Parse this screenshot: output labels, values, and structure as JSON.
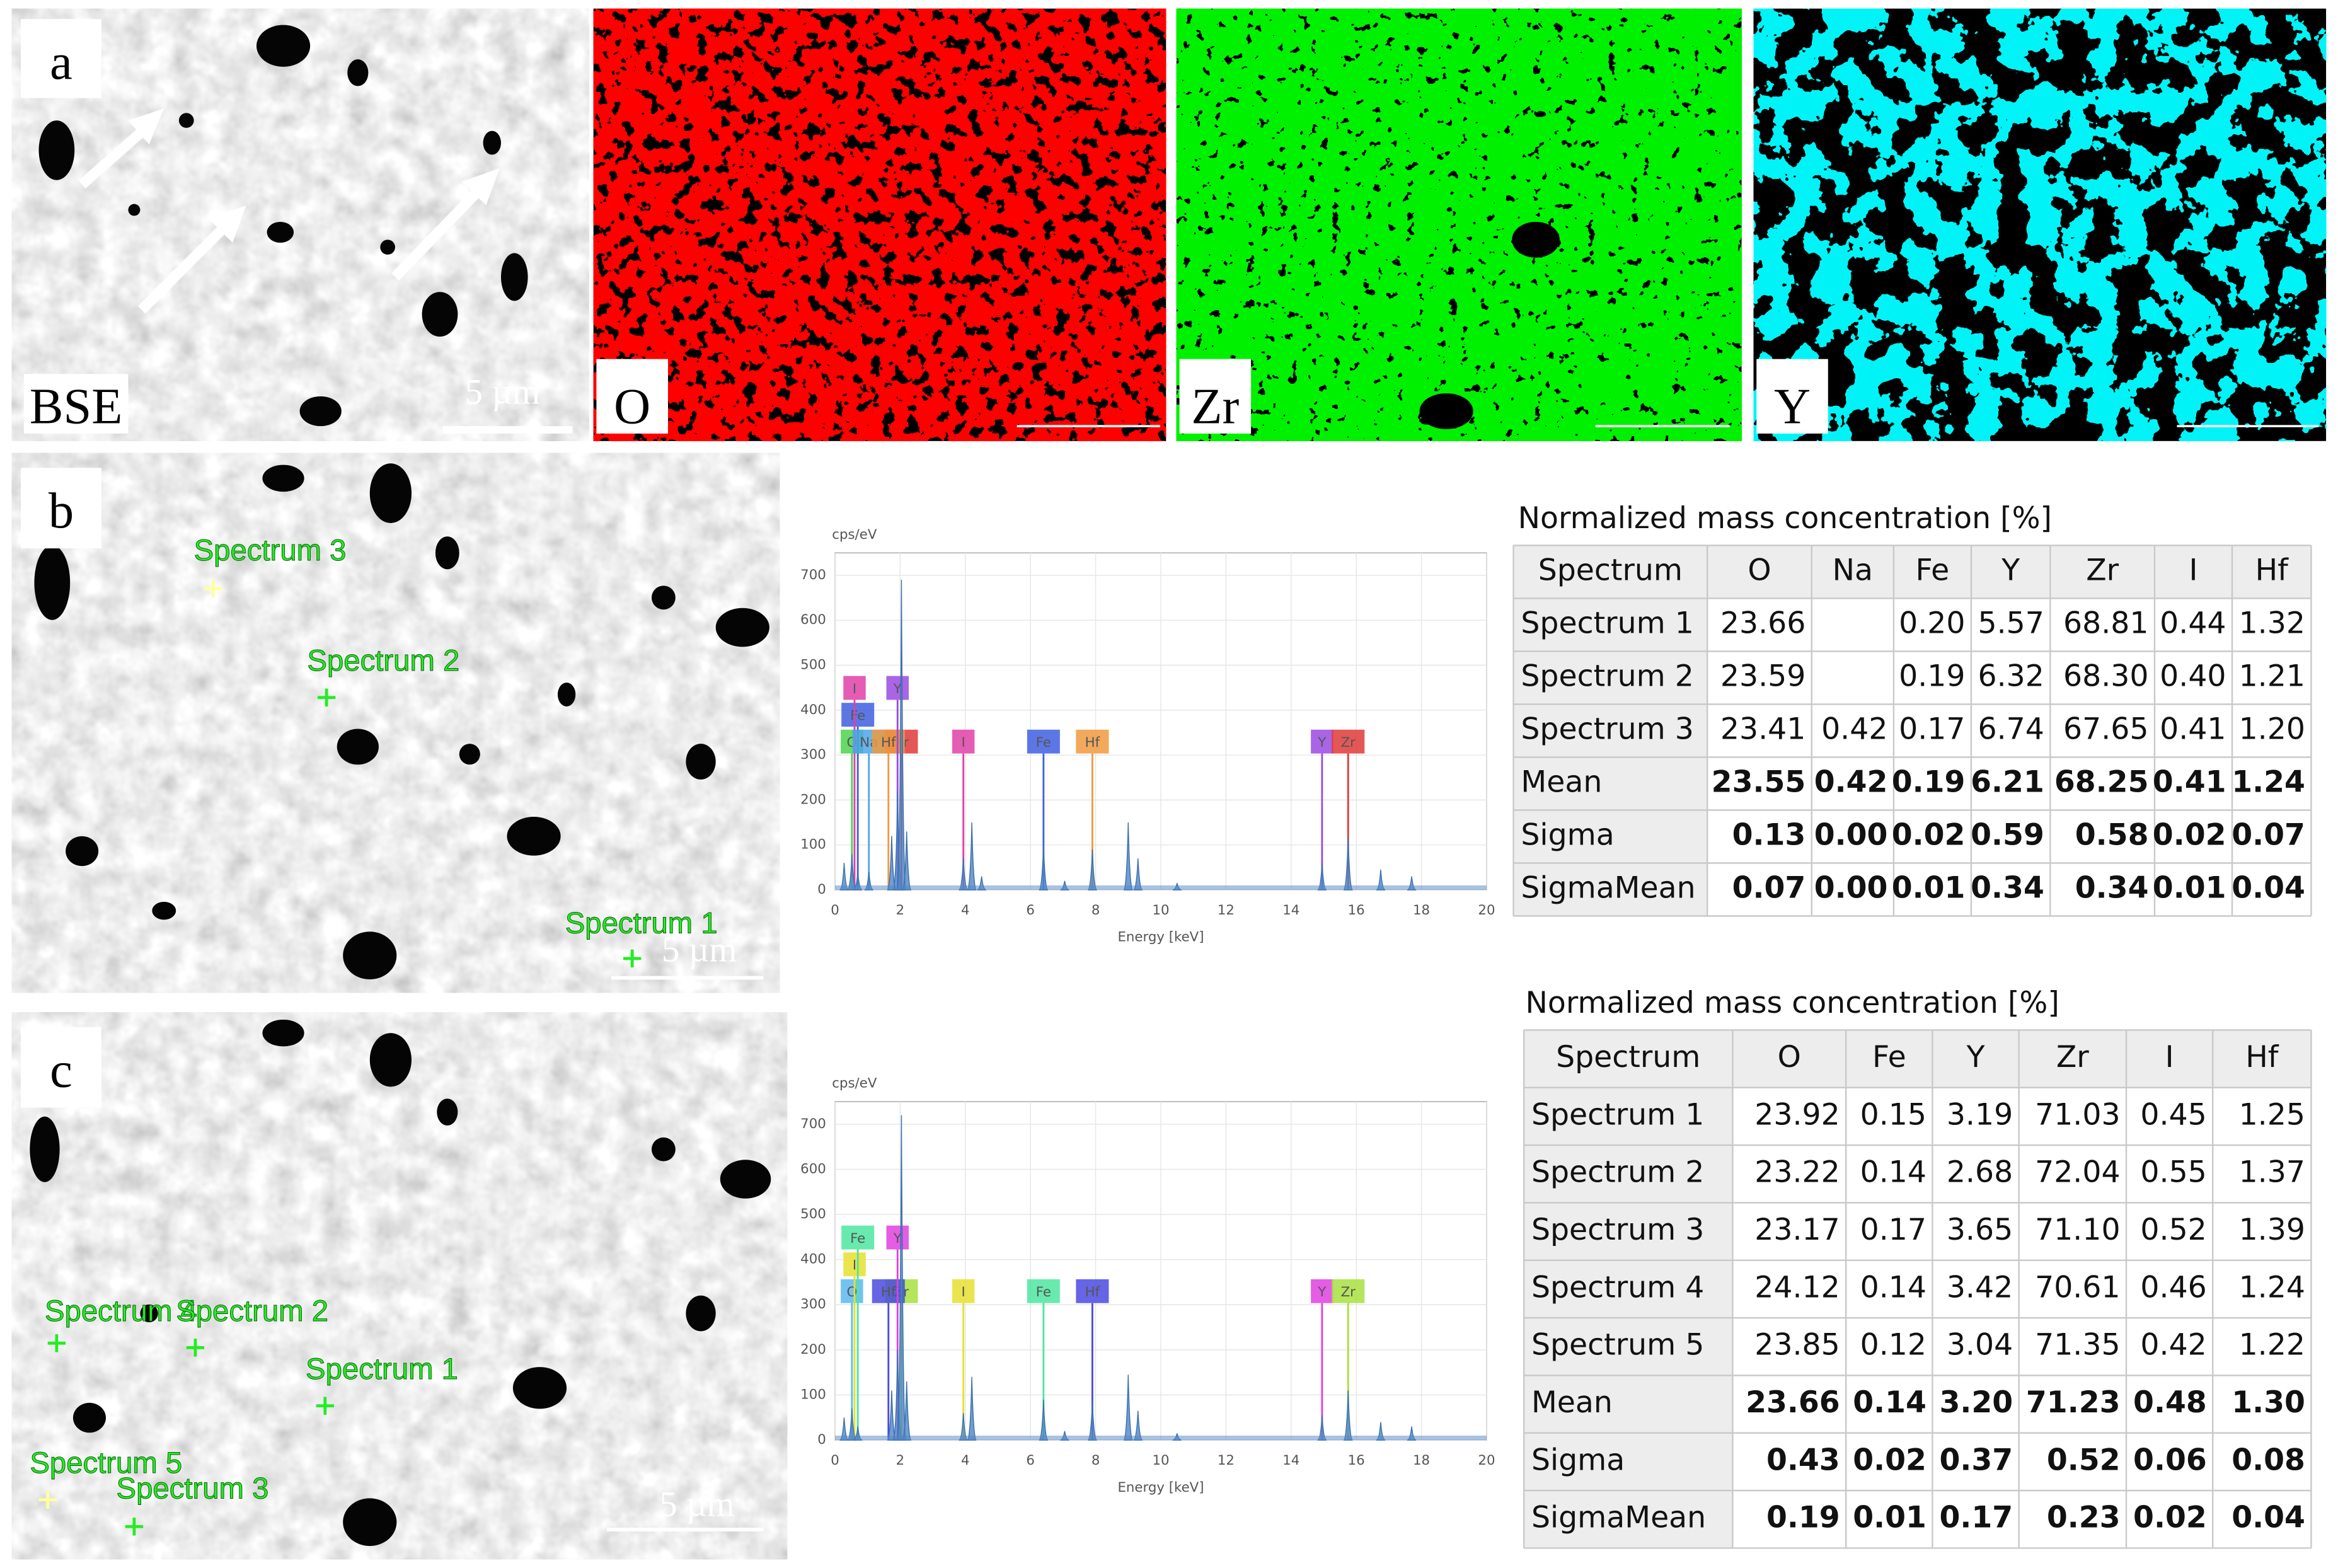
{
  "figure": {
    "panel_a": {
      "label": "a",
      "maps": [
        {
          "label": "BSE",
          "scale_bar": "5 µm"
        },
        {
          "label": "O"
        },
        {
          "label": "Zr"
        },
        {
          "label": "Y"
        }
      ]
    },
    "panel_b": {
      "label": "b",
      "scale_bar": "5 µm",
      "spectrum_points": [
        "Spectrum 3",
        "Spectrum 2",
        "Spectrum 1"
      ],
      "spectrum": {
        "y_label": "cps/eV",
        "x_label": "Energy [keV]",
        "xlim": [
          0,
          20
        ],
        "ylim": [
          0,
          750
        ],
        "xticks": [
          0,
          2,
          4,
          6,
          8,
          10,
          12,
          14,
          16,
          18,
          20
        ],
        "yticks": [
          0,
          100,
          200,
          300,
          400,
          500,
          600,
          700
        ],
        "peaks": {
          "x": [
            0.28,
            0.52,
            0.7,
            1.04,
            1.74,
            1.92,
            2.04,
            2.2,
            3.94,
            4.2,
            4.5,
            6.4,
            7.05,
            7.9,
            9.0,
            9.3,
            10.5,
            14.95,
            15.75,
            16.75,
            17.7
          ],
          "y": [
            60,
            80,
            40,
            40,
            120,
            220,
            690,
            130,
            70,
            150,
            30,
            100,
            20,
            90,
            150,
            70,
            15,
            60,
            120,
            45,
            30
          ]
        },
        "tags": [
          {
            "name": "O",
            "energy": 0.52,
            "color": "#4cd44c"
          },
          {
            "name": "Fe",
            "energy": 0.7,
            "color": "#3f5fe0"
          },
          {
            "name": "I",
            "energy": 0.6,
            "color": "#e040a8"
          },
          {
            "name": "Na",
            "energy": 1.04,
            "color": "#4ea6e8"
          },
          {
            "name": "Zr",
            "energy": 2.04,
            "color": "#e03a3a"
          },
          {
            "name": "Hf",
            "energy": 1.64,
            "color": "#f09a40"
          },
          {
            "name": "Y",
            "energy": 1.92,
            "color": "#9a4ae0"
          },
          {
            "name": "I",
            "energy": 3.94,
            "color": "#e040a8"
          },
          {
            "name": "Fe",
            "energy": 6.4,
            "color": "#3f5fe0"
          },
          {
            "name": "Hf",
            "energy": 7.9,
            "color": "#f09a40"
          },
          {
            "name": "Y",
            "energy": 14.95,
            "color": "#9a4ae0"
          },
          {
            "name": "Zr",
            "energy": 15.75,
            "color": "#e03a3a"
          }
        ]
      },
      "table": {
        "title": "Normalized mass concentration [%]",
        "header": [
          "Spectrum",
          "O",
          "Na",
          "Fe",
          "Y",
          "Zr",
          "I",
          "Hf"
        ],
        "rows": [
          [
            "Spectrum 1",
            "23.66",
            null,
            "0.20",
            "5.57",
            "68.81",
            "0.44",
            "1.32"
          ],
          [
            "Spectrum 2",
            "23.59",
            null,
            "0.19",
            "6.32",
            "68.30",
            "0.40",
            "1.21"
          ],
          [
            "Spectrum 3",
            "23.41",
            "0.42",
            "0.17",
            "6.74",
            "67.65",
            "0.41",
            "1.20"
          ],
          [
            "Mean",
            "23.55",
            "0.42",
            "0.19",
            "6.21",
            "68.25",
            "0.41",
            "1.24"
          ],
          [
            "Sigma",
            "0.13",
            "0.00",
            "0.02",
            "0.59",
            "0.58",
            "0.02",
            "0.07"
          ],
          [
            "SigmaMean",
            "0.07",
            "0.00",
            "0.01",
            "0.34",
            "0.34",
            "0.01",
            "0.04"
          ]
        ]
      }
    },
    "panel_c": {
      "label": "c",
      "scale_bar": "5 µm",
      "spectrum_points": [
        "Spectrum 4",
        "Spectrum 2",
        "Spectrum 1",
        "Spectrum 5",
        "Spectrum 3"
      ],
      "spectrum": {
        "y_label": "cps/eV",
        "x_label": "Energy [keV]",
        "xlim": [
          0,
          20
        ],
        "ylim": [
          0,
          750
        ],
        "xticks": [
          0,
          2,
          4,
          6,
          8,
          10,
          12,
          14,
          16,
          18,
          20
        ],
        "yticks": [
          0,
          100,
          200,
          300,
          400,
          500,
          600,
          700
        ],
        "peaks": {
          "x": [
            0.28,
            0.52,
            0.7,
            1.74,
            1.92,
            2.04,
            2.2,
            3.94,
            4.2,
            6.4,
            7.05,
            7.9,
            9.0,
            9.3,
            10.5,
            14.95,
            15.75,
            16.75,
            17.7
          ],
          "y": [
            50,
            70,
            30,
            110,
            200,
            720,
            130,
            60,
            140,
            90,
            20,
            85,
            145,
            65,
            15,
            55,
            110,
            40,
            30
          ]
        },
        "tags": [
          {
            "name": "O",
            "energy": 0.52,
            "color": "#5bb8f0"
          },
          {
            "name": "I",
            "energy": 0.6,
            "color": "#e6e030"
          },
          {
            "name": "Fe",
            "energy": 0.7,
            "color": "#4de6a0"
          },
          {
            "name": "Zr",
            "energy": 2.04,
            "color": "#a8e040"
          },
          {
            "name": "Hf",
            "energy": 1.64,
            "color": "#4a4ae0"
          },
          {
            "name": "Y",
            "energy": 1.92,
            "color": "#e040e0"
          },
          {
            "name": "I",
            "energy": 3.94,
            "color": "#e6e030"
          },
          {
            "name": "Fe",
            "energy": 6.4,
            "color": "#4de6a0"
          },
          {
            "name": "Hf",
            "energy": 7.9,
            "color": "#4a4ae0"
          },
          {
            "name": "Y",
            "energy": 14.95,
            "color": "#e040e0"
          },
          {
            "name": "Zr",
            "energy": 15.75,
            "color": "#a8e040"
          }
        ]
      },
      "table": {
        "title": "Normalized mass concentration [%]",
        "header": [
          "Spectrum",
          "O",
          "Fe",
          "Y",
          "Zr",
          "I",
          "Hf"
        ],
        "rows": [
          [
            "Spectrum 1",
            "23.92",
            "0.15",
            "3.19",
            "71.03",
            "0.45",
            "1.25"
          ],
          [
            "Spectrum 2",
            "23.22",
            "0.14",
            "2.68",
            "72.04",
            "0.55",
            "1.37"
          ],
          [
            "Spectrum 3",
            "23.17",
            "0.17",
            "3.65",
            "71.10",
            "0.52",
            "1.39"
          ],
          [
            "Spectrum 4",
            "24.12",
            "0.14",
            "3.42",
            "70.61",
            "0.46",
            "1.24"
          ],
          [
            "Spectrum 5",
            "23.85",
            "0.12",
            "3.04",
            "71.35",
            "0.42",
            "1.22"
          ],
          [
            "Mean",
            "23.66",
            "0.14",
            "3.20",
            "71.23",
            "0.48",
            "1.30"
          ],
          [
            "Sigma",
            "0.43",
            "0.02",
            "0.37",
            "0.52",
            "0.06",
            "0.08"
          ],
          [
            "SigmaMean",
            "0.19",
            "0.01",
            "0.17",
            "0.23",
            "0.02",
            "0.04"
          ]
        ]
      }
    }
  }
}
